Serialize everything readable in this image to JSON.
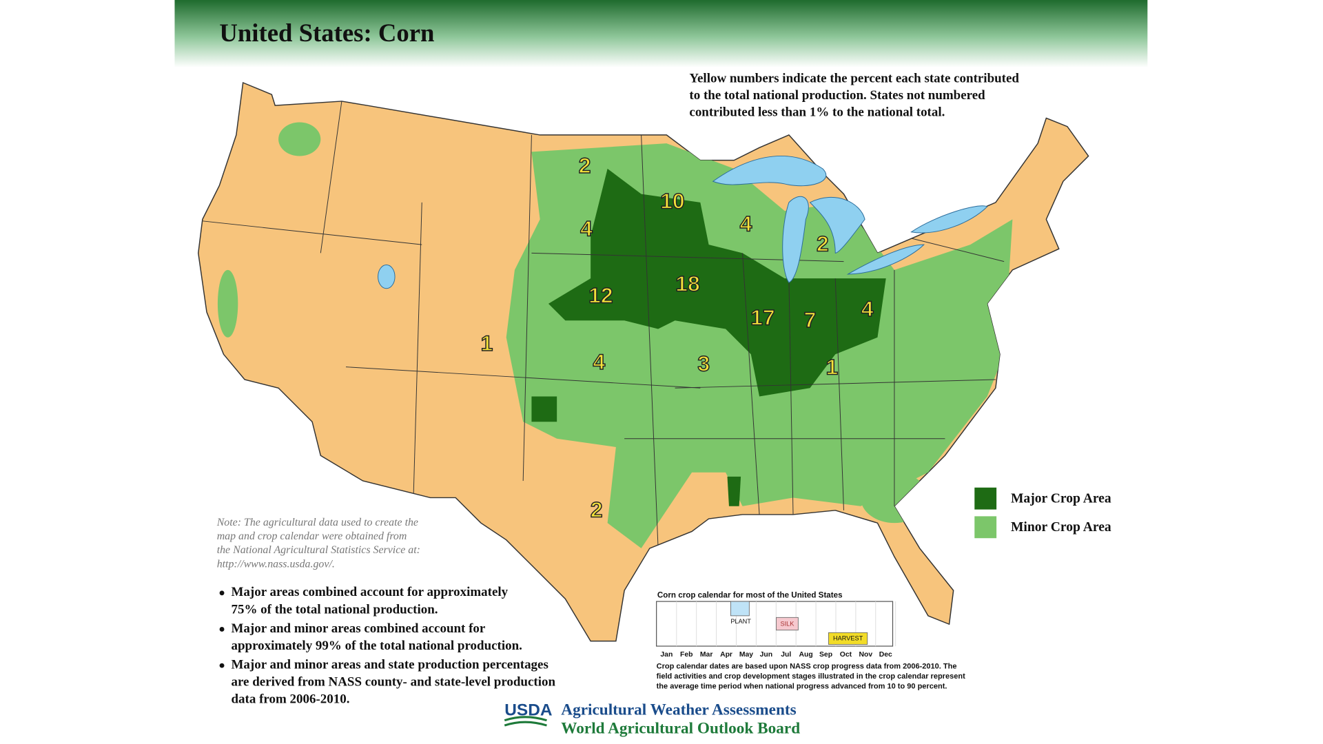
{
  "header": {
    "title": "United States:  Corn"
  },
  "intro": [
    "Yellow numbers indicate the percent each state contributed",
    "to the total national production.  States not numbered",
    "contributed less than 1% to the national total."
  ],
  "state_percentages": [
    2,
    10,
    4,
    2,
    4,
    18,
    12,
    17,
    7,
    4,
    1,
    3,
    4,
    1,
    2
  ],
  "legend": [
    "Major Crop Area",
    "Minor Crop Area"
  ],
  "note": [
    "Note:  The agricultural data used to create the",
    "map and crop calendar were obtained from",
    "the National Agricultural Statistics Service at:",
    "http://www.nass.usda.gov/."
  ],
  "bullets": [
    [
      "Major areas combined account for approximately",
      "75% of the total national production."
    ],
    [
      "Major and minor areas combined account for",
      "approximately 99% of the total national production."
    ],
    [
      "Major and minor areas and state production percentages",
      "are derived from NASS county- and state-level production",
      "data from 2006-2010."
    ]
  ],
  "calendar": {
    "title": "Corn crop calendar for most of the United States",
    "stages": [
      "PLANT",
      "SILK",
      "HARVEST"
    ],
    "months": [
      "Jan",
      "Feb",
      "Mar",
      "Apr",
      "May",
      "Jun",
      "Jul",
      "Aug",
      "Sep",
      "Oct",
      "Nov",
      "Dec"
    ],
    "caption": [
      "Crop calendar dates are based upon NASS crop progress data from 2006-2010.  The",
      "field activities and crop development stages illustrated in the crop calendar represent",
      "the average time period when national progress advanced from 10 to 90 percent."
    ]
  },
  "footer": {
    "logo": "USDA",
    "lines": [
      "Agricultural Weather Assessments",
      "World Agricultural Outlook Board"
    ]
  }
}
